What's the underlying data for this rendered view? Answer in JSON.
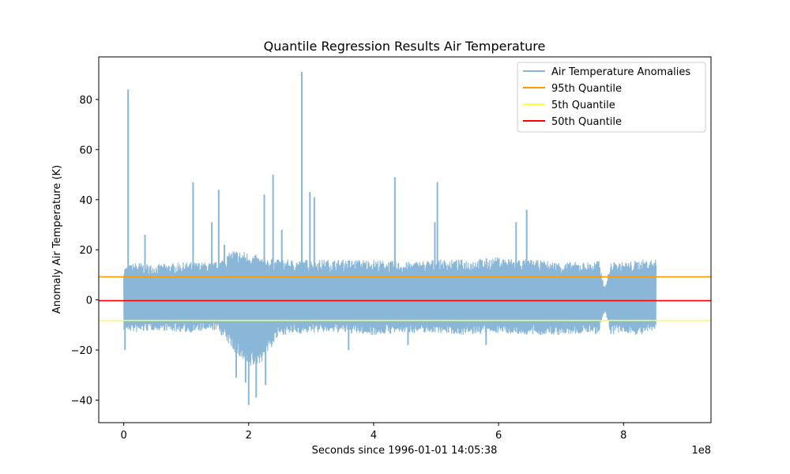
{
  "chart_data": {
    "type": "line",
    "title": "Quantile Regression Results Air Temperature",
    "xlabel": "Seconds since 1996-01-01 14:05:38",
    "ylabel": "Anomaly Air Temperature (K)",
    "x_offset_label": "1e8",
    "xlim": [
      -0.4,
      9.4
    ],
    "ylim": [
      -49,
      97
    ],
    "x_ticks": [
      0,
      2,
      4,
      6,
      8
    ],
    "x_tick_labels": [
      "0",
      "2",
      "4",
      "6",
      "8"
    ],
    "y_ticks": [
      -40,
      -20,
      0,
      20,
      40,
      60,
      80
    ],
    "y_tick_labels": [
      "−40",
      "−20",
      "0",
      "20",
      "40",
      "60",
      "80"
    ],
    "grid": false,
    "legend_position": "top-right",
    "series": [
      {
        "name": "Air Temperature Anomalies",
        "color": "#8ab7d8",
        "x_range": [
          0,
          8.52
        ],
        "envelope_x": [
          0,
          0.2,
          0.5,
          1.0,
          1.5,
          1.75,
          2.0,
          2.2,
          2.5,
          3.0,
          3.5,
          4.0,
          4.5,
          5.0,
          5.5,
          6.0,
          6.5,
          7.0,
          7.5,
          7.6,
          7.7,
          7.8,
          8.0,
          8.3,
          8.52
        ],
        "envelope_upper": [
          13,
          15,
          14,
          15,
          15,
          20,
          19,
          17,
          16,
          16,
          16,
          16,
          15,
          16,
          16,
          17,
          16,
          15,
          15,
          16,
          5,
          15,
          15,
          16,
          16
        ],
        "envelope_lower": [
          -12,
          -13,
          -12,
          -13,
          -12,
          -20,
          -28,
          -25,
          -14,
          -13,
          -13,
          -14,
          -13,
          -13,
          -14,
          -13,
          -14,
          -14,
          -13,
          -14,
          -5,
          -14,
          -13,
          -14,
          -12
        ],
        "spikes": [
          {
            "x": 0.02,
            "y": -20
          },
          {
            "x": 0.07,
            "y": 84
          },
          {
            "x": 0.34,
            "y": 26
          },
          {
            "x": 1.11,
            "y": 47
          },
          {
            "x": 1.41,
            "y": 31
          },
          {
            "x": 1.52,
            "y": 44
          },
          {
            "x": 1.61,
            "y": 22
          },
          {
            "x": 1.8,
            "y": -31
          },
          {
            "x": 1.95,
            "y": -33
          },
          {
            "x": 2.0,
            "y": -42
          },
          {
            "x": 2.12,
            "y": -39
          },
          {
            "x": 2.25,
            "y": 42
          },
          {
            "x": 2.27,
            "y": -34
          },
          {
            "x": 2.39,
            "y": 50
          },
          {
            "x": 2.53,
            "y": 28
          },
          {
            "x": 2.85,
            "y": 91
          },
          {
            "x": 2.98,
            "y": 43
          },
          {
            "x": 3.05,
            "y": 41
          },
          {
            "x": 3.6,
            "y": -20
          },
          {
            "x": 4.34,
            "y": 49
          },
          {
            "x": 4.55,
            "y": -18
          },
          {
            "x": 4.98,
            "y": 31
          },
          {
            "x": 5.02,
            "y": 47
          },
          {
            "x": 5.8,
            "y": -18
          },
          {
            "x": 6.28,
            "y": 31
          },
          {
            "x": 6.45,
            "y": 36
          }
        ]
      },
      {
        "name": "95th Quantile",
        "color": "#ff9900",
        "y": 9.2
      },
      {
        "name": "5th Quantile",
        "color": "#ffff33",
        "y": -8.2
      },
      {
        "name": "50th Quantile",
        "color": "#ff0000",
        "y": -0.3
      }
    ]
  }
}
